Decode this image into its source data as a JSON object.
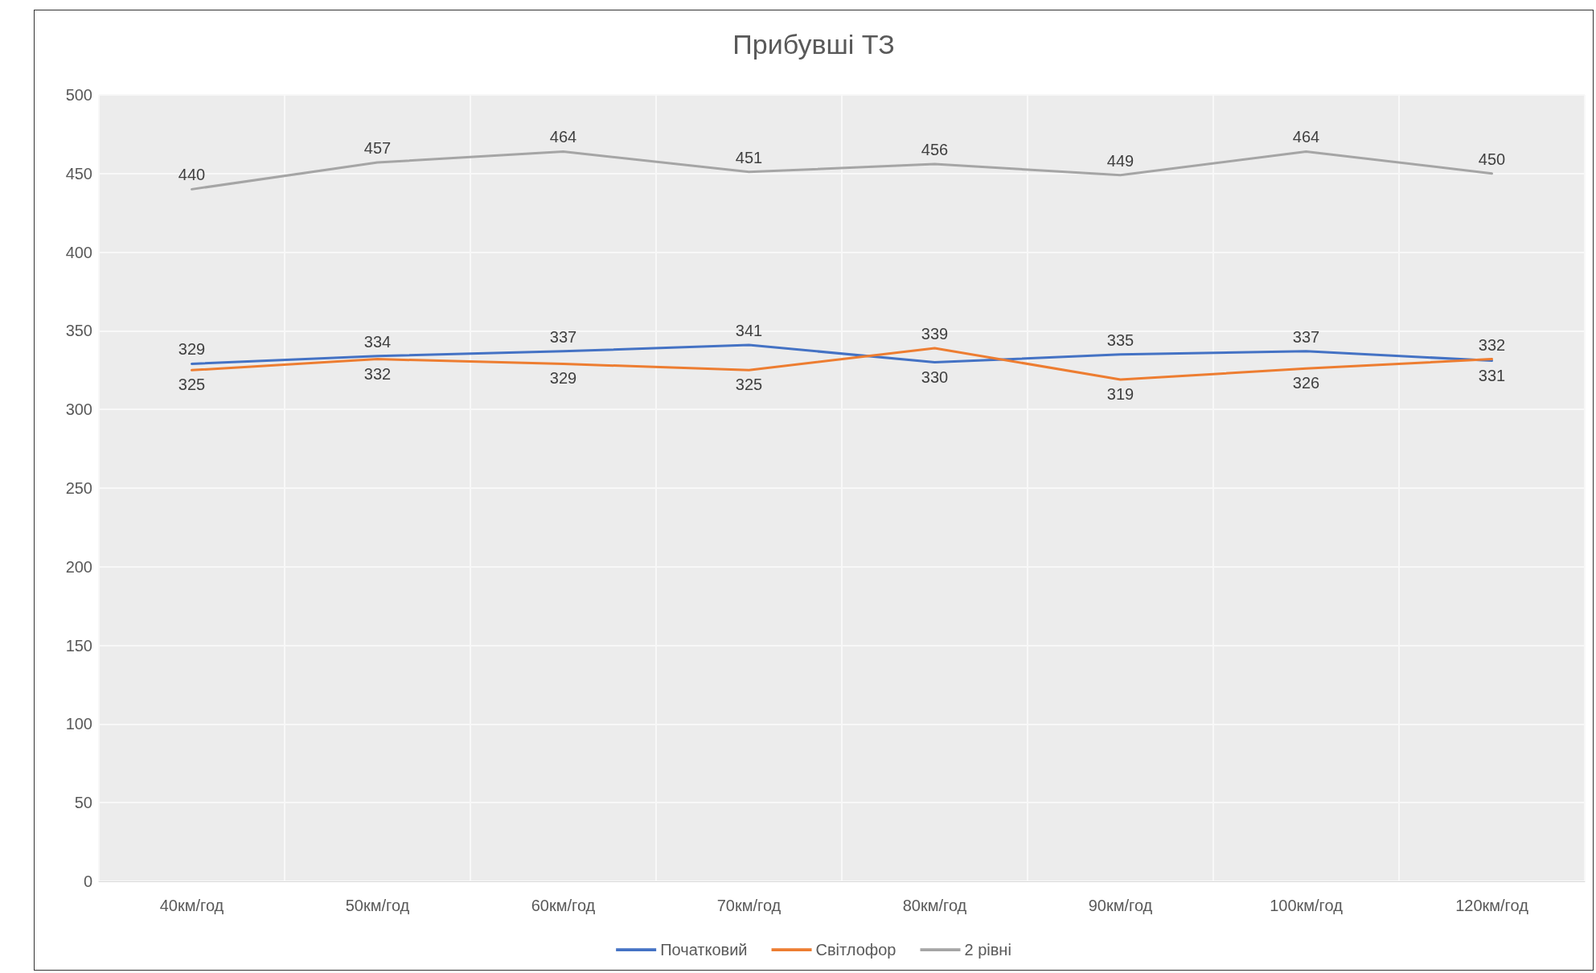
{
  "chart_data": {
    "type": "line",
    "title": "Прибувші ТЗ",
    "categories": [
      "40км/год",
      "50км/год",
      "60км/год",
      "70км/год",
      "80км/год",
      "90км/год",
      "100км/год",
      "120км/год"
    ],
    "series": [
      {
        "name": "Початковий",
        "color": "#4472c4",
        "values": [
          329,
          334,
          337,
          341,
          330,
          335,
          337,
          331
        ]
      },
      {
        "name": "Світлофор",
        "color": "#ed7d31",
        "values": [
          325,
          332,
          329,
          325,
          339,
          319,
          326,
          332
        ]
      },
      {
        "name": "2 рівні",
        "color": "#a5a5a5",
        "values": [
          440,
          457,
          464,
          451,
          456,
          449,
          464,
          450
        ]
      }
    ],
    "ylim": [
      0,
      500
    ],
    "yticks": [
      0,
      50,
      100,
      150,
      200,
      250,
      300,
      350,
      400,
      450,
      500
    ],
    "grid": true,
    "legend": "bottom",
    "data_labels": true,
    "marker": "none",
    "line_style": "solid"
  }
}
